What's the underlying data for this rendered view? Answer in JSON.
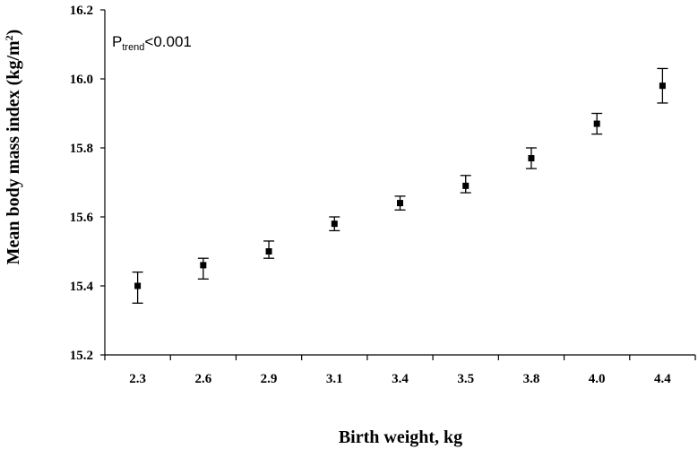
{
  "chart_data": {
    "type": "scatter",
    "categories": [
      "2.3",
      "2.6",
      "2.9",
      "3.1",
      "3.4",
      "3.5",
      "3.8",
      "4.0",
      "4.4"
    ],
    "values": [
      15.4,
      15.46,
      15.5,
      15.58,
      15.64,
      15.69,
      15.77,
      15.87,
      15.98
    ],
    "error_low": [
      15.35,
      15.42,
      15.48,
      15.56,
      15.62,
      15.67,
      15.74,
      15.84,
      15.93
    ],
    "error_high": [
      15.44,
      15.48,
      15.53,
      15.6,
      15.66,
      15.72,
      15.8,
      15.9,
      16.03
    ],
    "xlabel": "Birth weight, kg",
    "ylabel": "Mean body mass index (kg/m",
    "ylabel_sup": "2",
    "ylabel_tail": ")",
    "ylim": [
      15.2,
      16.2
    ],
    "yticks": [
      "15.2",
      "15.4",
      "15.6",
      "15.8",
      "16.0",
      "16.2"
    ],
    "annotation": {
      "main": "P",
      "sub": "trend",
      "tail": "<0.001"
    },
    "grid": false,
    "marker_color": "#000000"
  }
}
